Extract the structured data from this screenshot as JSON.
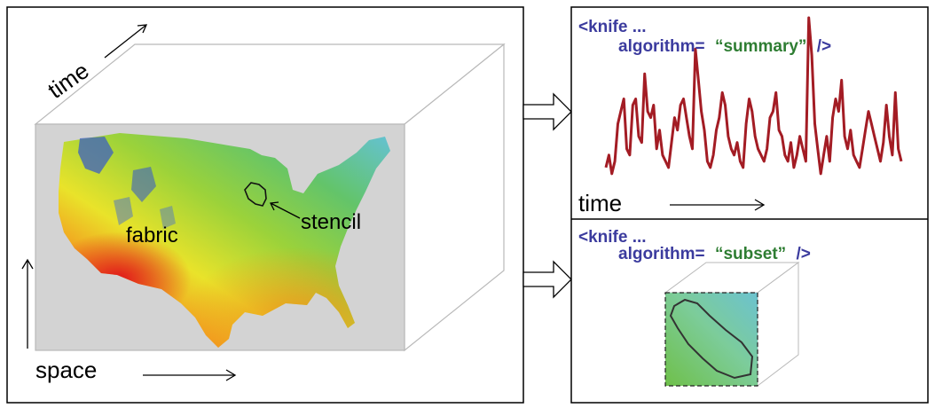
{
  "left_panel": {
    "time_label": "time",
    "space_label": "space",
    "fabric_label": "fabric",
    "stencil_label": "stencil"
  },
  "summary_panel": {
    "code_line1": "<knife ...",
    "code_attr": "algorithm=",
    "code_value": "“summary”",
    "code_close": "/>",
    "time_label": "time"
  },
  "subset_panel": {
    "code_line1": "<knife ...",
    "code_attr": "algorithm=",
    "code_value": "“subset”",
    "code_close": "/>"
  },
  "colors": {
    "code_blue": "#3b3b9e",
    "code_green": "#2e7d32",
    "series": "#a31c24",
    "cube_face": "#d3d3d3",
    "cube_edge": "#b9b9b9"
  },
  "chart_data": {
    "type": "line",
    "xlabel": "time",
    "series": [
      {
        "values": [
          3,
          5,
          2,
          4,
          10,
          12,
          14,
          6,
          5,
          13,
          14,
          8,
          7,
          18,
          12,
          11,
          13,
          6,
          9,
          5,
          4,
          3,
          7,
          11,
          9,
          13,
          14,
          11,
          8,
          6,
          22,
          17,
          12,
          9,
          4,
          3,
          5,
          9,
          11,
          15,
          13,
          8,
          6,
          5,
          7,
          4,
          3,
          10,
          14,
          12,
          8,
          6,
          5,
          4,
          6,
          11,
          12,
          15,
          9,
          8,
          5,
          4,
          7,
          3,
          5,
          8,
          6,
          4,
          27,
          21,
          10,
          6,
          2,
          5,
          8,
          4,
          11,
          14,
          12,
          17,
          8,
          6,
          9,
          5,
          4,
          3,
          6,
          9,
          12,
          10,
          8,
          6,
          4,
          7,
          13,
          8,
          5,
          15,
          6,
          4
        ]
      }
    ]
  }
}
